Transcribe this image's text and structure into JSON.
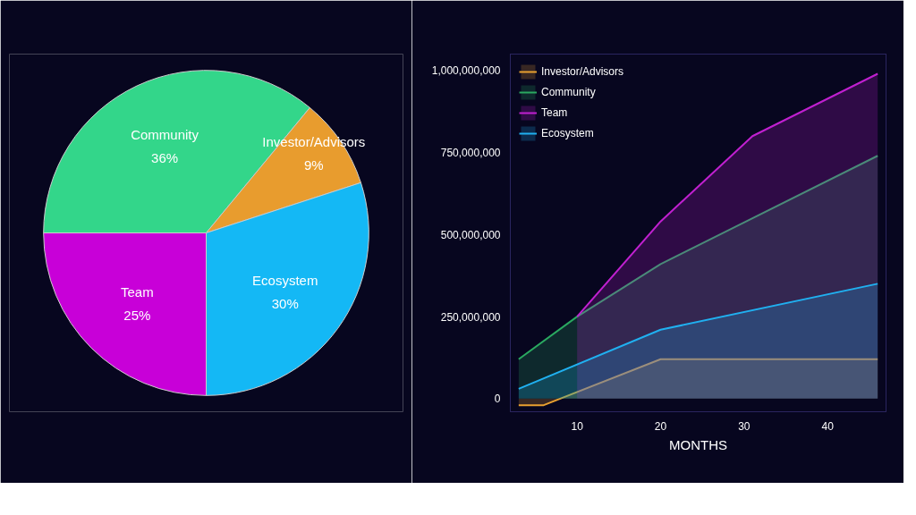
{
  "chart_data": [
    {
      "type": "pie",
      "categories": [
        "Community",
        "Investor/Advisors",
        "Ecosystem",
        "Team"
      ],
      "values": [
        36,
        9,
        30,
        25
      ],
      "value_labels": [
        "36%",
        "9%",
        "30%",
        "25%"
      ],
      "colors": [
        "#33d68a",
        "#e89c2e",
        "#14b8f5",
        "#c800d8"
      ]
    },
    {
      "type": "area",
      "xlabel": "MONTHS",
      "legend": "top left",
      "grid": false,
      "xlim": [
        2,
        47
      ],
      "xticks": [
        10,
        20,
        30,
        40
      ],
      "ylim": [
        -40000000,
        1050000000
      ],
      "yticks": [
        {
          "value": 0,
          "label": "0"
        },
        {
          "value": 250000000,
          "label": "250,000,000"
        },
        {
          "value": 500000000,
          "label": "500,000,000"
        },
        {
          "value": 750000000,
          "label": "750,000,000"
        },
        {
          "value": 1000000000,
          "label": "1,000,000,000"
        }
      ],
      "series": [
        {
          "name": "Investor/Advisors",
          "color": "#e8a030",
          "x": [
            3,
            6,
            20,
            46
          ],
          "values": [
            -20000000,
            -20000000,
            120000000,
            120000000
          ]
        },
        {
          "name": "Community",
          "color": "#2aa860",
          "x": [
            3,
            10,
            20,
            46
          ],
          "values": [
            120000000,
            250000000,
            410000000,
            740000000
          ]
        },
        {
          "name": "Team",
          "color": "#c020d0",
          "x": [
            10,
            20,
            31,
            46
          ],
          "values": [
            250000000,
            540000000,
            800000000,
            990000000
          ]
        },
        {
          "name": "Ecosystem",
          "color": "#20b0f0",
          "x": [
            3,
            20,
            46
          ],
          "values": [
            30000000,
            210000000,
            350000000
          ]
        }
      ]
    }
  ]
}
